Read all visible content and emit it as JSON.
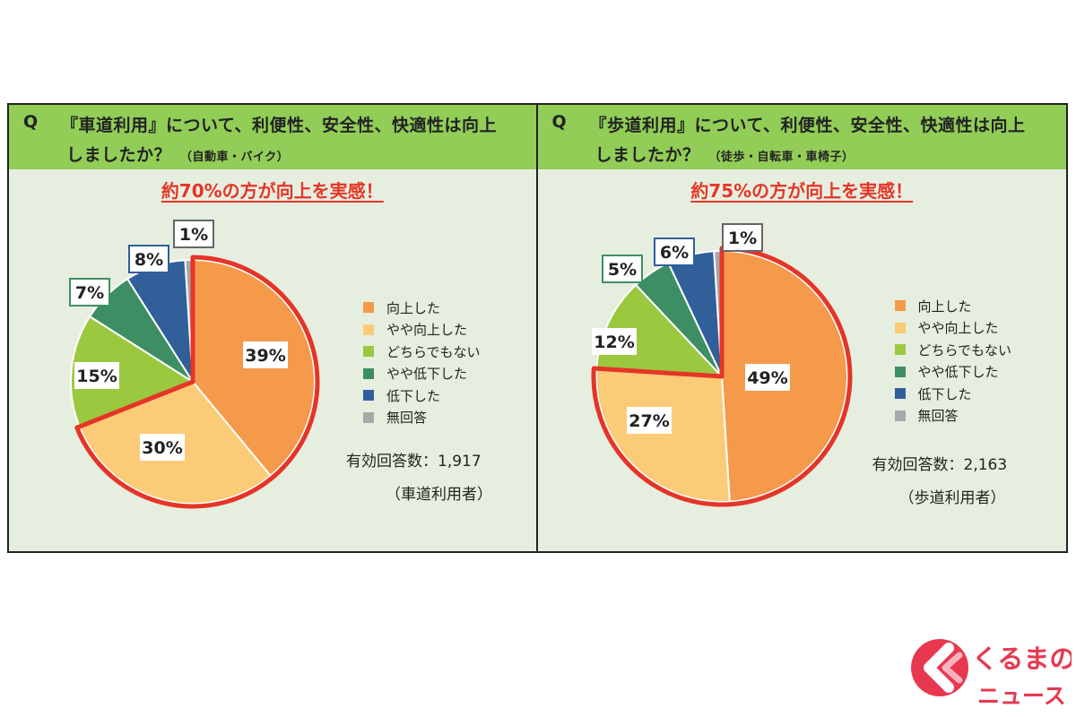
{
  "colors": {
    "header_green": "#92cd57",
    "panel_bg": "#e6efdf",
    "highlight_red": "#e53528",
    "segment_colors": [
      "#f5994a",
      "#fccb77",
      "#9ac93f",
      "#3d8f63",
      "#305f9a",
      "#a8a8a8"
    ]
  },
  "legend": [
    "向上した",
    "やや向上した",
    "どちらでもない",
    "やや低下した",
    "低下した",
    "無回答"
  ],
  "chart_data": [
    {
      "type": "pie",
      "question_prefix": "Q",
      "question_line1": "『車道利用』について、利便性、安全性、快適性は向上",
      "question_line2": "しましたか？",
      "question_sub": "（自動車・バイク）",
      "headline": "約70%の方が向上を実感！",
      "categories": [
        "向上した",
        "やや向上した",
        "どちらでもない",
        "やや低下した",
        "低下した",
        "無回答"
      ],
      "values": [
        39,
        30,
        15,
        7,
        8,
        1
      ],
      "data_labels": [
        "39%",
        "30%",
        "15%",
        "7%",
        "8%",
        "1%"
      ],
      "highlighted": [
        "向上した",
        "やや向上した"
      ],
      "respondents_label": "有効回答数：1,917",
      "respondents_group": "（車道利用者）"
    },
    {
      "type": "pie",
      "question_prefix": "Q",
      "question_line1": "『歩道利用』について、利便性、安全性、快適性は向上",
      "question_line2": "しましたか？",
      "question_sub": "（徒歩・自転車・車椅子）",
      "headline": "約75%の方が向上を実感！",
      "categories": [
        "向上した",
        "やや向上した",
        "どちらでもない",
        "やや低下した",
        "低下した",
        "無回答"
      ],
      "values": [
        49,
        27,
        12,
        5,
        6,
        1
      ],
      "data_labels": [
        "49%",
        "27%",
        "12%",
        "5%",
        "6%",
        "1%"
      ],
      "highlighted": [
        "向上した",
        "やや向上した"
      ],
      "respondents_label": "有効回答数：2,163",
      "respondents_group": "（歩道利用者）"
    }
  ],
  "logo": {
    "text_top": "くるまの",
    "text_bottom": "ニュース",
    "color": "#e8384f"
  }
}
